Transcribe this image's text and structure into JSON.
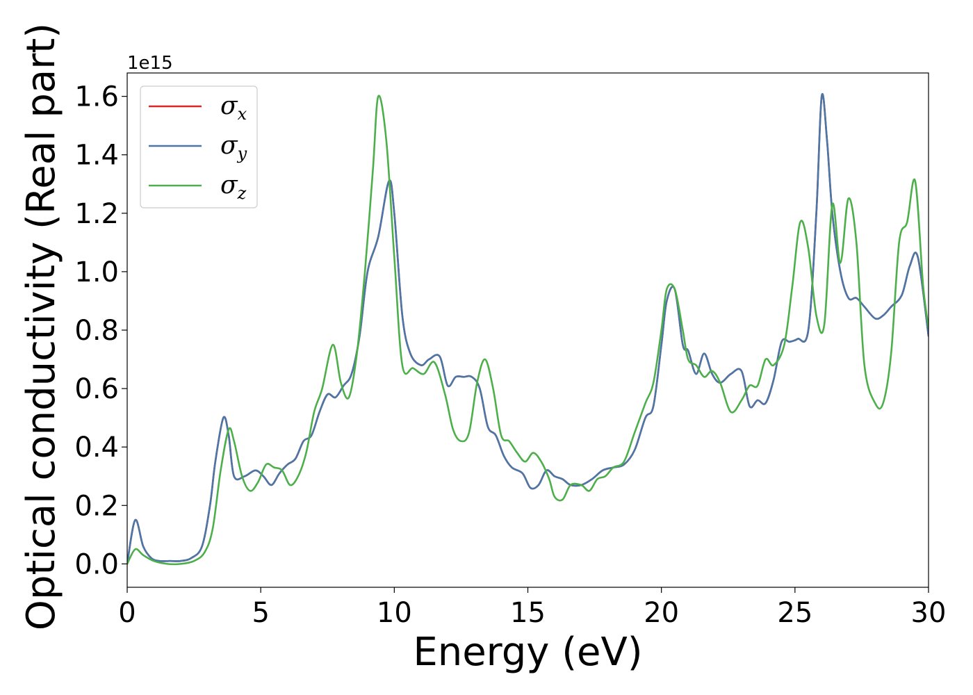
{
  "chart_data": {
    "type": "line",
    "xlabel": "Energy (eV)",
    "ylabel": "Optical conductivity (Real part)",
    "y_offset_label": "1e15",
    "xlim": [
      0,
      30
    ],
    "ylim": [
      -0.08,
      1.68
    ],
    "xticks": [
      0,
      5,
      10,
      15,
      20,
      25,
      30
    ],
    "xtick_labels": [
      "0",
      "5",
      "10",
      "15",
      "20",
      "25",
      "30"
    ],
    "yticks": [
      0.0,
      0.2,
      0.4,
      0.6,
      0.8,
      1.0,
      1.2,
      1.4,
      1.6
    ],
    "ytick_labels": [
      "0.0",
      "0.2",
      "0.4",
      "0.6",
      "0.8",
      "1.0",
      "1.2",
      "1.4",
      "1.6"
    ],
    "grid": false,
    "legend_position": "top-left",
    "series": [
      {
        "name": "σ",
        "sub": "x",
        "color": "#d62728",
        "x": [
          0,
          0.3,
          0.6,
          0.9,
          1.2,
          1.6,
          2.0,
          2.4,
          2.8,
          3.1,
          3.3,
          3.6,
          3.8,
          4.0,
          4.4,
          4.8,
          5.1,
          5.4,
          5.7,
          6.0,
          6.3,
          6.6,
          6.9,
          7.2,
          7.5,
          7.8,
          8.1,
          8.4,
          8.7,
          9.0,
          9.4,
          9.8,
          10.0,
          10.3,
          10.6,
          11.0,
          11.3,
          11.7,
          12.0,
          12.3,
          12.6,
          12.9,
          13.2,
          13.5,
          13.8,
          14.1,
          14.4,
          14.8,
          15.1,
          15.4,
          15.7,
          16.0,
          16.3,
          16.6,
          17.0,
          17.4,
          17.8,
          18.2,
          18.6,
          19.0,
          19.4,
          19.7,
          20.0,
          20.2,
          20.5,
          20.8,
          21.0,
          21.3,
          21.6,
          21.9,
          22.2,
          22.6,
          23.0,
          23.3,
          23.6,
          23.9,
          24.2,
          24.5,
          24.8,
          25.1,
          25.5,
          25.8,
          26.0,
          26.2,
          26.4,
          26.7,
          27.0,
          27.3,
          27.6,
          28.0,
          28.3,
          28.6,
          29.0,
          29.3,
          29.6,
          30.0
        ],
        "values": [
          0.0,
          0.15,
          0.06,
          0.02,
          0.01,
          0.01,
          0.01,
          0.02,
          0.06,
          0.2,
          0.35,
          0.5,
          0.44,
          0.3,
          0.3,
          0.32,
          0.3,
          0.27,
          0.31,
          0.34,
          0.36,
          0.42,
          0.44,
          0.52,
          0.58,
          0.57,
          0.61,
          0.65,
          0.78,
          1.0,
          1.12,
          1.31,
          1.2,
          0.85,
          0.72,
          0.68,
          0.7,
          0.71,
          0.61,
          0.64,
          0.64,
          0.64,
          0.6,
          0.47,
          0.44,
          0.37,
          0.33,
          0.31,
          0.26,
          0.27,
          0.32,
          0.3,
          0.29,
          0.27,
          0.27,
          0.29,
          0.32,
          0.33,
          0.34,
          0.39,
          0.5,
          0.54,
          0.75,
          0.9,
          0.94,
          0.75,
          0.73,
          0.65,
          0.72,
          0.65,
          0.62,
          0.65,
          0.66,
          0.54,
          0.56,
          0.55,
          0.63,
          0.76,
          0.76,
          0.77,
          0.8,
          1.2,
          1.6,
          1.45,
          1.2,
          1.0,
          0.91,
          0.91,
          0.88,
          0.84,
          0.85,
          0.88,
          0.92,
          1.02,
          1.05,
          0.78
        ]
      },
      {
        "name": "σ",
        "sub": "y",
        "color": "#4a76a8",
        "x": [
          0,
          0.3,
          0.6,
          0.9,
          1.2,
          1.6,
          2.0,
          2.4,
          2.8,
          3.1,
          3.3,
          3.6,
          3.8,
          4.0,
          4.4,
          4.8,
          5.1,
          5.4,
          5.7,
          6.0,
          6.3,
          6.6,
          6.9,
          7.2,
          7.5,
          7.8,
          8.1,
          8.4,
          8.7,
          9.0,
          9.4,
          9.8,
          10.0,
          10.3,
          10.6,
          11.0,
          11.3,
          11.7,
          12.0,
          12.3,
          12.6,
          12.9,
          13.2,
          13.5,
          13.8,
          14.1,
          14.4,
          14.8,
          15.1,
          15.4,
          15.7,
          16.0,
          16.3,
          16.6,
          17.0,
          17.4,
          17.8,
          18.2,
          18.6,
          19.0,
          19.4,
          19.7,
          20.0,
          20.2,
          20.5,
          20.8,
          21.0,
          21.3,
          21.6,
          21.9,
          22.2,
          22.6,
          23.0,
          23.3,
          23.6,
          23.9,
          24.2,
          24.5,
          24.8,
          25.1,
          25.5,
          25.8,
          26.0,
          26.2,
          26.4,
          26.7,
          27.0,
          27.3,
          27.6,
          28.0,
          28.3,
          28.6,
          29.0,
          29.3,
          29.6,
          30.0
        ],
        "values": [
          0.0,
          0.15,
          0.06,
          0.02,
          0.01,
          0.01,
          0.01,
          0.02,
          0.06,
          0.2,
          0.35,
          0.5,
          0.44,
          0.3,
          0.3,
          0.32,
          0.3,
          0.27,
          0.31,
          0.34,
          0.36,
          0.42,
          0.44,
          0.52,
          0.58,
          0.57,
          0.61,
          0.65,
          0.78,
          1.0,
          1.12,
          1.31,
          1.2,
          0.85,
          0.72,
          0.68,
          0.7,
          0.71,
          0.61,
          0.64,
          0.64,
          0.64,
          0.6,
          0.47,
          0.44,
          0.37,
          0.33,
          0.31,
          0.26,
          0.27,
          0.32,
          0.3,
          0.29,
          0.27,
          0.27,
          0.29,
          0.32,
          0.33,
          0.34,
          0.39,
          0.5,
          0.54,
          0.75,
          0.9,
          0.94,
          0.75,
          0.73,
          0.65,
          0.72,
          0.65,
          0.62,
          0.65,
          0.66,
          0.54,
          0.56,
          0.55,
          0.63,
          0.76,
          0.76,
          0.77,
          0.8,
          1.2,
          1.6,
          1.45,
          1.2,
          1.0,
          0.91,
          0.91,
          0.88,
          0.84,
          0.85,
          0.88,
          0.92,
          1.02,
          1.05,
          0.78
        ]
      },
      {
        "name": "σ",
        "sub": "z",
        "color": "#4daf4a",
        "x": [
          0,
          0.3,
          0.6,
          1.0,
          1.5,
          2.0,
          2.5,
          2.9,
          3.2,
          3.5,
          3.8,
          4.0,
          4.3,
          4.6,
          4.9,
          5.2,
          5.5,
          5.8,
          6.1,
          6.4,
          6.7,
          7.0,
          7.3,
          7.7,
          8.0,
          8.3,
          8.6,
          8.9,
          9.2,
          9.4,
          9.7,
          10.0,
          10.3,
          10.7,
          11.1,
          11.5,
          11.9,
          12.2,
          12.5,
          12.8,
          13.1,
          13.4,
          13.7,
          14.0,
          14.3,
          14.6,
          14.9,
          15.2,
          15.5,
          15.8,
          16.0,
          16.3,
          16.6,
          17.0,
          17.3,
          17.6,
          17.9,
          18.2,
          18.6,
          19.0,
          19.4,
          19.7,
          20.0,
          20.2,
          20.5,
          20.8,
          21.0,
          21.3,
          21.6,
          21.9,
          22.2,
          22.6,
          23.0,
          23.3,
          23.6,
          23.9,
          24.2,
          24.6,
          24.9,
          25.2,
          25.5,
          25.8,
          26.1,
          26.4,
          26.7,
          27.0,
          27.3,
          27.6,
          28.0,
          28.3,
          28.6,
          28.9,
          29.2,
          29.5,
          29.8,
          30.0
        ],
        "values": [
          0.0,
          0.05,
          0.03,
          0.01,
          0.0,
          0.0,
          0.01,
          0.04,
          0.12,
          0.32,
          0.46,
          0.42,
          0.3,
          0.25,
          0.28,
          0.34,
          0.33,
          0.32,
          0.27,
          0.3,
          0.38,
          0.52,
          0.6,
          0.75,
          0.62,
          0.57,
          0.72,
          1.0,
          1.35,
          1.6,
          1.45,
          1.05,
          0.68,
          0.67,
          0.65,
          0.69,
          0.58,
          0.46,
          0.42,
          0.45,
          0.62,
          0.7,
          0.6,
          0.44,
          0.42,
          0.38,
          0.35,
          0.38,
          0.35,
          0.29,
          0.23,
          0.22,
          0.27,
          0.27,
          0.25,
          0.29,
          0.3,
          0.33,
          0.35,
          0.45,
          0.55,
          0.62,
          0.8,
          0.94,
          0.94,
          0.8,
          0.7,
          0.68,
          0.64,
          0.66,
          0.62,
          0.52,
          0.56,
          0.61,
          0.61,
          0.7,
          0.68,
          0.75,
          0.95,
          1.17,
          1.08,
          0.85,
          0.82,
          1.23,
          1.03,
          1.25,
          1.1,
          0.68,
          0.55,
          0.55,
          0.72,
          1.1,
          1.17,
          1.31,
          0.95,
          0.81
        ]
      }
    ]
  }
}
